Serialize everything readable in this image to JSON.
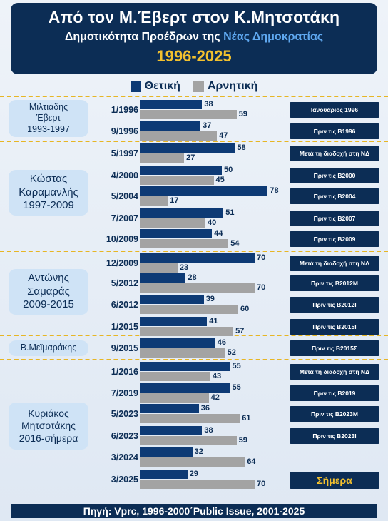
{
  "header": {
    "title": "Από τον Μ.Έβερτ στον Κ.Μητσοτάκη",
    "subtitle_prefix": "Δημοτικότητα Προέδρων της ",
    "subtitle_highlight": "Νέας Δημοκρατίας",
    "years": "1996-2025"
  },
  "colors": {
    "positive": "#0d3a75",
    "negative": "#a3a3a3",
    "accent": "#f3c12e",
    "navy": "#0c2d55"
  },
  "chart_data": {
    "type": "bar",
    "orientation": "horizontal",
    "xlim": [
      0,
      80
    ],
    "legend_position": "top",
    "categories": [
      "1/1996",
      "9/1996",
      "5/1997",
      "4/2000",
      "5/2004",
      "7/2007",
      "10/2009",
      "12/2009",
      "5/2012",
      "6/2012",
      "1/2015",
      "9/2015",
      "1/2016",
      "7/2019",
      "5/2023",
      "6/2023",
      "3/2024",
      "3/2025"
    ],
    "series": [
      {
        "name": "Θετική",
        "values": [
          38,
          37,
          58,
          50,
          78,
          51,
          44,
          70,
          28,
          39,
          41,
          46,
          55,
          55,
          36,
          38,
          32,
          29
        ]
      },
      {
        "name": "Αρνητική",
        "values": [
          59,
          47,
          27,
          45,
          17,
          40,
          54,
          23,
          70,
          60,
          57,
          52,
          43,
          42,
          61,
          59,
          64,
          70
        ]
      }
    ],
    "annotations": [
      "Ιανουάριος 1996",
      "Πριν τις Β1996",
      "Μετά τη διαδοχή στη ΝΔ",
      "Πριν τις Β2000",
      "Πριν τις Β2004",
      "Πριν τις Β2007",
      "Πριν τις Β2009",
      "Μετά τη διαδοχή στη ΝΔ",
      "Πριν τις Β2012Μ",
      "Πριν τις Β2012Ι",
      "Πριν τις Β2015Ι",
      "Πριν τις Β2015Σ",
      "Μετά τη διαδοχή στη ΝΔ",
      "Πριν τις Β2019",
      "Πριν τις Β2023Μ",
      "Πριν τις Β2023Ι",
      "",
      "Σήμερα"
    ]
  },
  "leaders": [
    {
      "name": "Μιλτιάδης\nΈβερτ\n1993-1997"
    },
    {
      "name": "Κώστας\nΚαραμανλής\n1997-2009"
    },
    {
      "name": "Αντώνης\nΣαμαράς\n2009-2015"
    },
    {
      "name": "Β.Μεϊμαράκης"
    },
    {
      "name": "Κυριάκος\nΜητσοτάκης\n2016-σήμερα"
    }
  ],
  "footer": {
    "source": "Πηγή: Vprc, 1996-2000΄Public Issue, 2001-2025"
  }
}
